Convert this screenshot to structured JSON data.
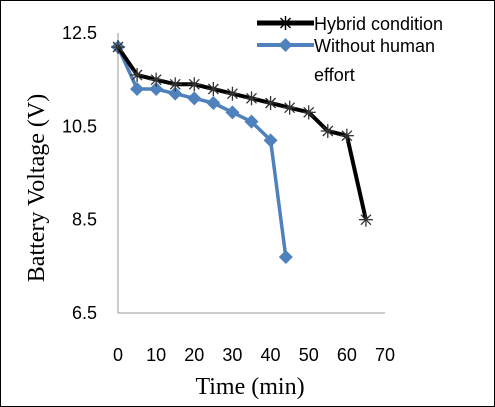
{
  "chart_data": {
    "type": "line",
    "xlabel": "Time (min)",
    "ylabel": "Battery Voltage (V)",
    "xlim": [
      0,
      70
    ],
    "ylim": [
      6.5,
      12.5
    ],
    "x_ticks": [
      "0",
      "10",
      "20",
      "30",
      "40",
      "50",
      "60",
      "70"
    ],
    "y_ticks": [
      "12.5",
      "10.5",
      "8.5",
      "6.5"
    ],
    "grid": false,
    "legend_position": "top-right",
    "series": [
      {
        "name": "Hybrid condition",
        "color": "#000000",
        "marker": "asterisk",
        "x": [
          0,
          5,
          10,
          15,
          20,
          25,
          30,
          35,
          40,
          45,
          50,
          55,
          60,
          65
        ],
        "y": [
          12.2,
          11.6,
          11.5,
          11.4,
          11.4,
          11.3,
          11.2,
          11.1,
          11.0,
          10.9,
          10.8,
          10.4,
          10.3,
          8.5
        ]
      },
      {
        "name": "Without human effort",
        "color": "#4f81bd",
        "marker": "diamond",
        "x": [
          0,
          5,
          10,
          15,
          20,
          25,
          30,
          35,
          40,
          44
        ],
        "y": [
          12.2,
          11.3,
          11.3,
          11.2,
          11.1,
          11.0,
          10.8,
          10.6,
          10.2,
          7.7
        ]
      }
    ]
  }
}
